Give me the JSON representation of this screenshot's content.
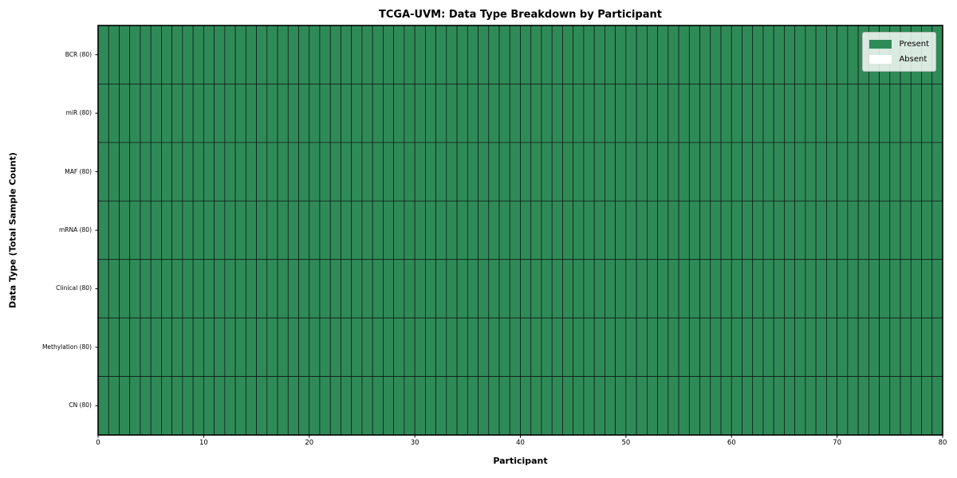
{
  "figure": {
    "title": "TCGA-UVM: Data Type Breakdown by Participant",
    "xlabel": "Participant",
    "ylabel": "Data Type (Total Sample Count)"
  },
  "legend": {
    "position": "upper right",
    "items": [
      {
        "label": "Present",
        "color": "#2E8B57"
      },
      {
        "label": "Absent",
        "color": "#FFFFFF"
      }
    ]
  },
  "chart_data": {
    "type": "heatmap",
    "title": "TCGA-UVM: Data Type Breakdown by Participant",
    "xlabel": "Participant",
    "ylabel": "Data Type (Total Sample Count)",
    "xlim": [
      0,
      80
    ],
    "x_ticks": [
      0,
      10,
      20,
      30,
      40,
      50,
      60,
      70,
      80
    ],
    "n_participants": 80,
    "rows": [
      {
        "label": "BCR (80)",
        "present_count": 80,
        "absent_count": 0
      },
      {
        "label": "miR (80)",
        "present_count": 80,
        "absent_count": 0
      },
      {
        "label": "MAF (80)",
        "present_count": 80,
        "absent_count": 0
      },
      {
        "label": "mRNA (80)",
        "present_count": 80,
        "absent_count": 0
      },
      {
        "label": "Clinical (80)",
        "present_count": 80,
        "absent_count": 0
      },
      {
        "label": "Methylation (80)",
        "present_count": 80,
        "absent_count": 0
      },
      {
        "label": "CN (80)",
        "present_count": 80,
        "absent_count": 0
      }
    ],
    "all_cells_present": true,
    "colors": {
      "present": "#2E8B57",
      "absent": "#FFFFFF",
      "cell_border": "#111111",
      "spine": "#000000"
    },
    "legend_entries": [
      "Present",
      "Absent"
    ],
    "grid": false
  }
}
